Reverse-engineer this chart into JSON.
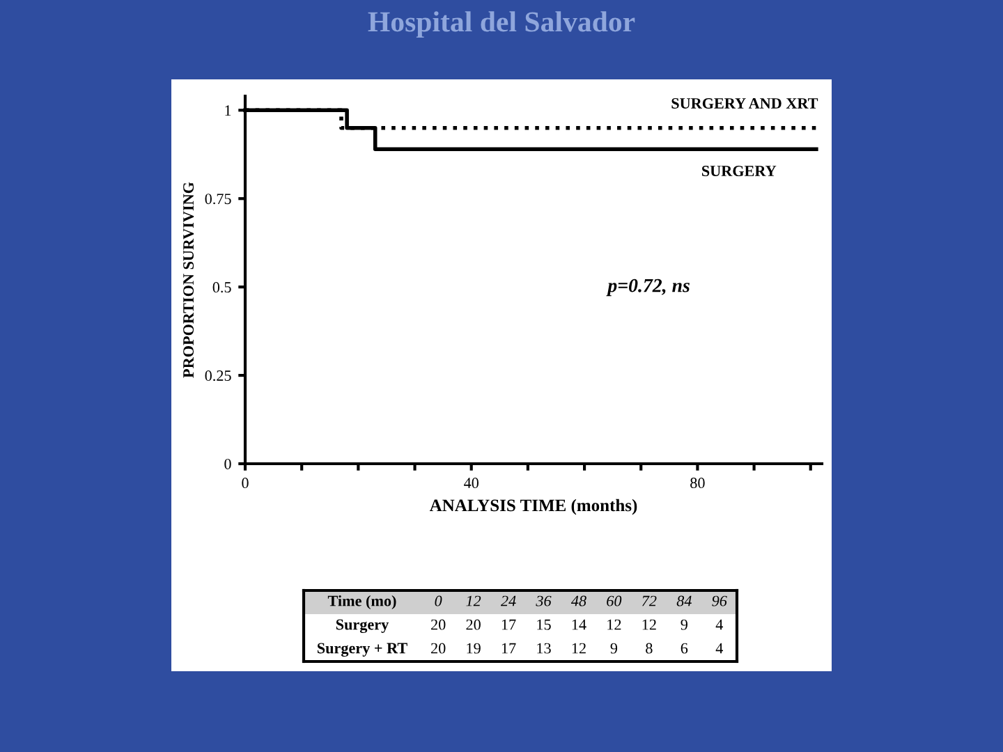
{
  "chart_data": {
    "type": "step",
    "title": "Hospital del Salvador",
    "xlabel": "ANALYSIS TIME (months)",
    "ylabel": "PROPORTION SURVIVING",
    "series": [
      {
        "name": "SURGERY AND XRT",
        "color": "#000000",
        "line_style": "dotted",
        "x": [
          0,
          17,
          102
        ],
        "values": [
          1,
          0.95,
          0.95
        ]
      },
      {
        "name": "SURGERY",
        "color": "#000000",
        "line_style": "solid",
        "x": [
          0,
          18,
          23,
          101
        ],
        "values": [
          1,
          0.95,
          0.89,
          0.89
        ]
      }
    ],
    "xlim": [
      0,
      102
    ],
    "ylim": [
      0,
      1.04
    ],
    "xticks": [
      0,
      {
        "value": 10,
        "label": null
      },
      {
        "value": 20,
        "label": null
      },
      {
        "value": 30,
        "label": null
      },
      40,
      {
        "value": 50,
        "label": null
      },
      {
        "value": 60,
        "label": null
      },
      {
        "value": 70,
        "label": null
      },
      80,
      {
        "value": 90,
        "label": null
      },
      {
        "value": 100,
        "label": null
      }
    ],
    "yticks": [
      0,
      0.25,
      0.5,
      0.75,
      1
    ],
    "grid": false,
    "legend": false,
    "annotations": [
      "p=0.72, ns",
      "Time (mo)",
      "0",
      "12",
      "24",
      "36",
      "48",
      "60",
      "72",
      "84",
      "96",
      "Surgery",
      "20",
      "20",
      "17",
      "15",
      "14",
      "12",
      "12",
      "9",
      "4",
      "Surgery + RT",
      "20",
      "19",
      "17",
      "13",
      "12",
      "9",
      "8",
      "6",
      "4"
    ]
  }
}
